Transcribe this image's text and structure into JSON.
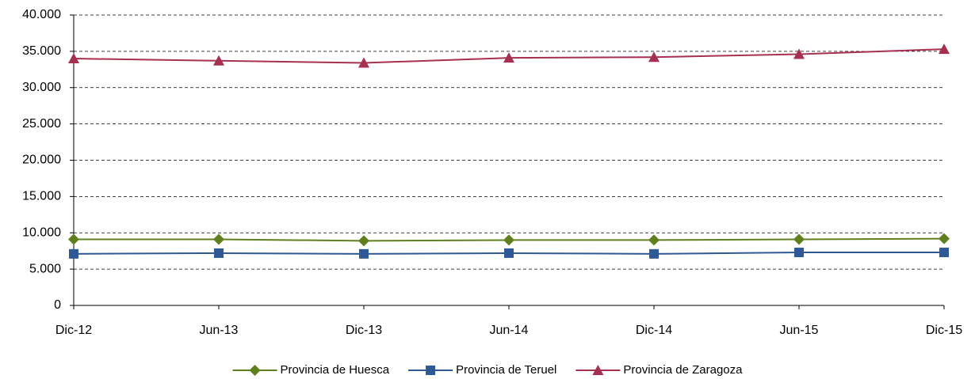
{
  "chart_data": {
    "type": "line",
    "categories": [
      "Dic-12",
      "Jun-13",
      "Dic-13",
      "Jun-14",
      "Dic-14",
      "Jun-15",
      "Dic-15"
    ],
    "series": [
      {
        "name": "Provincia de Huesca",
        "color": "#607f1e",
        "marker": "diamond",
        "values": [
          9100,
          9100,
          8900,
          9000,
          9000,
          9100,
          9200
        ]
      },
      {
        "name": "Provincia de Teruel",
        "color": "#2f5897",
        "marker": "square",
        "values": [
          7100,
          7200,
          7100,
          7200,
          7100,
          7300,
          7300
        ]
      },
      {
        "name": "Provincia de Zaragoza",
        "color": "#a6304f",
        "marker": "triangle",
        "values": [
          34000,
          33700,
          33400,
          34100,
          34200,
          34600,
          35300
        ]
      }
    ],
    "ylim": [
      0,
      40000
    ],
    "yticks": [
      0,
      {
        "value": 5000,
        "label": "5.000"
      },
      {
        "value": 10000,
        "label": "10.000"
      },
      {
        "value": 15000,
        "label": "15.000"
      },
      {
        "value": 20000,
        "label": "20.000"
      },
      {
        "value": 25000,
        "label": "25.000"
      },
      {
        "value": 30000,
        "label": "30.000"
      },
      {
        "value": 35000,
        "label": "35.000"
      },
      {
        "value": 40000,
        "label": "40.000"
      }
    ],
    "grid": true,
    "legend": "bottom"
  }
}
